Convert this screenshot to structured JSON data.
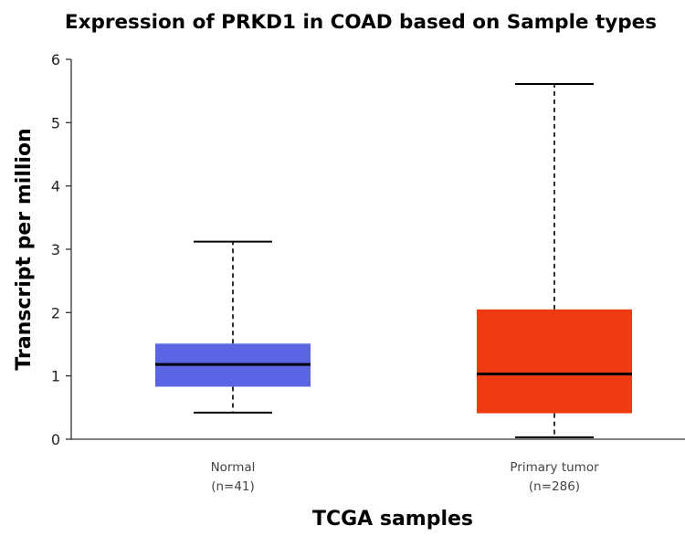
{
  "chart_data": {
    "type": "boxplot",
    "title": "Expression of PRKD1 in COAD based on Sample types",
    "xlabel": "TCGA samples",
    "ylabel": "Transcript per million",
    "ylim": [
      0,
      6
    ],
    "yticks": [
      0,
      1,
      2,
      3,
      4,
      5,
      6
    ],
    "grid": false,
    "legend": "none",
    "categories": [
      "Normal",
      "Primary tumor"
    ],
    "sample_counts": [
      "(n=41)",
      "(n=286)"
    ],
    "boxes": [
      {
        "category": "Normal",
        "n_label": "(n=41)",
        "min": 0.42,
        "q1": 0.83,
        "median": 1.18,
        "q3": 1.51,
        "max": 3.12,
        "color": "#5b65e3"
      },
      {
        "category": "Primary tumor",
        "n_label": "(n=286)",
        "min": 0.03,
        "q1": 0.41,
        "median": 1.03,
        "q3": 2.05,
        "max": 5.61,
        "color": "#f03a12"
      }
    ]
  }
}
